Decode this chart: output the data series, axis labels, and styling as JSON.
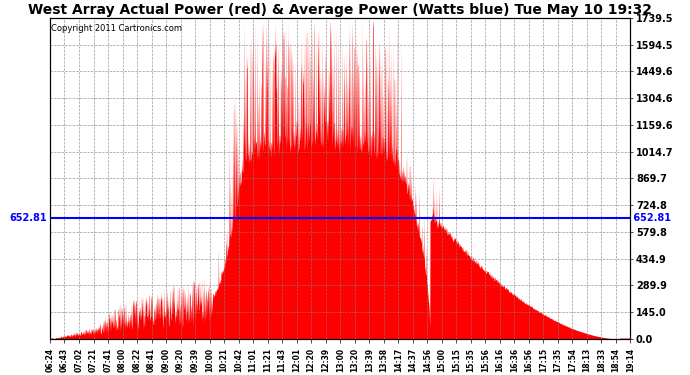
{
  "title": "West Array Actual Power (red) & Average Power (Watts blue) Tue May 10 19:32",
  "copyright": "Copyright 2011 Cartronics.com",
  "avg_power": 652.81,
  "ymax": 1739.5,
  "ymin": 0.0,
  "yticks": [
    0.0,
    145.0,
    289.9,
    434.9,
    579.8,
    724.8,
    869.7,
    1014.7,
    1159.6,
    1304.6,
    1449.6,
    1594.5,
    1739.5
  ],
  "xtick_labels": [
    "06:24",
    "06:43",
    "07:02",
    "07:21",
    "07:41",
    "08:00",
    "08:22",
    "08:41",
    "09:00",
    "09:20",
    "09:39",
    "10:00",
    "10:21",
    "10:42",
    "11:01",
    "11:21",
    "11:43",
    "12:01",
    "12:20",
    "12:39",
    "13:00",
    "13:20",
    "13:39",
    "13:58",
    "14:17",
    "14:37",
    "14:56",
    "15:00",
    "15:15",
    "15:35",
    "15:56",
    "16:16",
    "16:36",
    "16:56",
    "17:15",
    "17:35",
    "17:54",
    "18:13",
    "18:33",
    "18:54",
    "19:14"
  ],
  "bg_color": "#ffffff",
  "fill_color": "#ff0000",
  "line_color": "#0000ff",
  "grid_color": "#808080",
  "title_fontsize": 10,
  "figwidth": 6.9,
  "figheight": 3.75,
  "dpi": 100
}
